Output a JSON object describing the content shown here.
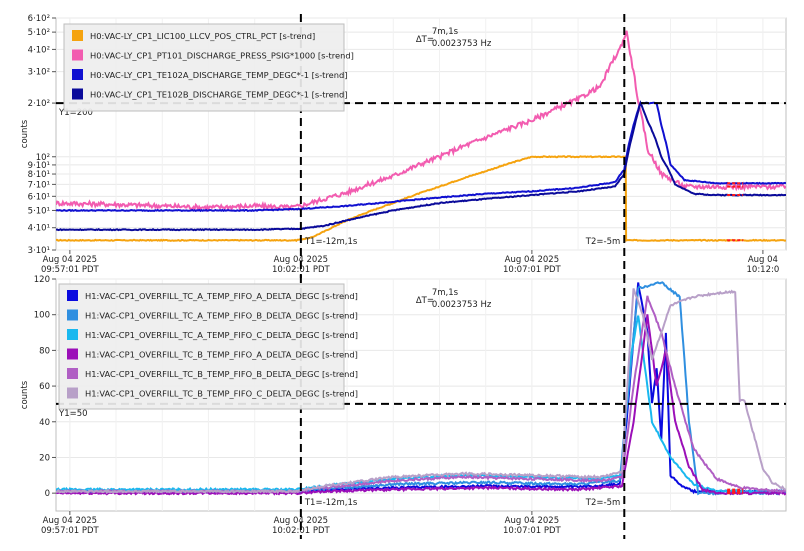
{
  "chart_data": [
    {
      "type": "line",
      "ylabel": "counts",
      "yscale": "log",
      "ylim": [
        30,
        600
      ],
      "ytick_labels": [
        "3·10¹",
        "4·10¹",
        "5·10¹",
        "6·10¹",
        "7·10¹",
        "8·10¹",
        "9·10¹",
        "10²",
        "2·10²",
        "3·10²",
        "4·10²",
        "5·10²",
        "6·10²"
      ],
      "ytick_values": [
        30,
        40,
        50,
        60,
        70,
        80,
        90,
        100,
        200,
        300,
        400,
        500,
        600
      ],
      "x_unit": "minutes relative to 10:02:01",
      "xlim": [
        -5.3,
        10.5
      ],
      "xtick_labels": [
        {
          "date": "Aug 04 2025",
          "time": "09:57:01 PDT",
          "x": -5
        },
        {
          "date": "Aug 04 2025",
          "time": "10:02:01 PDT",
          "x": 0
        },
        {
          "date": "Aug 04 2025",
          "time": "10:07:01 PDT",
          "x": 5
        },
        {
          "date": "Aug 04",
          "time": "10:12:0",
          "x": 10
        }
      ],
      "grid": true,
      "legend_position": "top-left",
      "series": [
        {
          "name": "H0:VAC-LY_CP1_LIC100_LLCV_POS_CTRL_PCT [s-trend]",
          "color": "#f5a30f",
          "points": [
            [
              -5.3,
              34
            ],
            [
              -0.1,
              34
            ],
            [
              0,
              34.5
            ],
            [
              0.2,
              35
            ],
            [
              0.5,
              38
            ],
            [
              1,
              44
            ],
            [
              2,
              55
            ],
            [
              3,
              68
            ],
            [
              4,
              83
            ],
            [
              5,
              100
            ],
            [
              7.03,
              100
            ],
            [
              7.04,
              34
            ],
            [
              10.5,
              34
            ]
          ]
        },
        {
          "name": "H0:VAC-LY_CP1_PT101_DISCHARGE_PRESS_PSIG*1000 [s-trend]",
          "color": "#f25cb0",
          "points": [
            [
              -5.3,
              55
            ],
            [
              -4,
              54
            ],
            [
              -3,
              53
            ],
            [
              -2,
              52
            ],
            [
              -1,
              53
            ],
            [
              -0.2,
              52
            ],
            [
              0,
              53
            ],
            [
              0.5,
              58
            ],
            [
              1,
              63
            ],
            [
              2,
              78
            ],
            [
              3,
              100
            ],
            [
              4,
              128
            ],
            [
              5,
              160
            ],
            [
              6,
              210
            ],
            [
              6.5,
              250
            ],
            [
              6.9,
              400
            ],
            [
              7.05,
              500
            ],
            [
              7.15,
              350
            ],
            [
              7.3,
              200
            ],
            [
              7.5,
              110
            ],
            [
              7.8,
              80
            ],
            [
              8.3,
              68
            ],
            [
              9,
              68
            ],
            [
              10.5,
              68
            ]
          ]
        },
        {
          "name": "H0:VAC-LY_CP1_TE102A_DISCHARGE_TEMP_DEGC*-1 [s-trend]",
          "color": "#1010d0",
          "points": [
            [
              -5.3,
              50
            ],
            [
              -1,
              50
            ],
            [
              0,
              51
            ],
            [
              1,
              53
            ],
            [
              2,
              56
            ],
            [
              3,
              59
            ],
            [
              4,
              62
            ],
            [
              5,
              64
            ],
            [
              6,
              67
            ],
            [
              6.8,
              72
            ],
            [
              7.0,
              85
            ],
            [
              7.2,
              150
            ],
            [
              7.35,
              200
            ],
            [
              7.7,
              200
            ],
            [
              7.8,
              150
            ],
            [
              8,
              90
            ],
            [
              8.3,
              74
            ],
            [
              9,
              71
            ],
            [
              10.5,
              71
            ]
          ]
        },
        {
          "name": "H0:VAC-LY_CP1_TE102B_DISCHARGE_TEMP_DEGC*-1 [s-trend]",
          "color": "#0a0a9a",
          "points": [
            [
              -5.3,
              39
            ],
            [
              -1,
              39
            ],
            [
              0,
              39.5
            ],
            [
              0.5,
              41
            ],
            [
              1,
              44
            ],
            [
              2,
              50
            ],
            [
              3,
              55
            ],
            [
              4,
              58
            ],
            [
              5,
              61
            ],
            [
              6,
              64
            ],
            [
              6.8,
              68
            ],
            [
              7.0,
              80
            ],
            [
              7.2,
              140
            ],
            [
              7.35,
              200
            ],
            [
              7.5,
              160
            ],
            [
              7.8,
              100
            ],
            [
              8.1,
              70
            ],
            [
              8.5,
              62
            ],
            [
              9,
              61
            ],
            [
              10.5,
              61
            ]
          ]
        }
      ],
      "cursors": {
        "y1": {
          "label": "Y1=200",
          "value": 200
        },
        "t1": {
          "label": "T1=-12m,1s",
          "x": 0
        },
        "t2": {
          "label": "T2=-5m",
          "x": 7.0
        }
      },
      "delta": {
        "label": "ΔT=",
        "line1": "7m,1s",
        "line2": "0.0023753 Hz"
      }
    },
    {
      "type": "line",
      "ylabel": "counts",
      "ylim": [
        -10,
        120
      ],
      "yticks": [
        0,
        20,
        40,
        60,
        80,
        100,
        120
      ],
      "x_unit": "minutes relative to 10:02:01",
      "xlim": [
        -5.3,
        10.5
      ],
      "xtick_labels": [
        {
          "date": "Aug 04 2025",
          "time": "09:57:01 PDT",
          "x": -5
        },
        {
          "date": "Aug 04 2025",
          "time": "10:02:01 PDT",
          "x": 0
        },
        {
          "date": "Aug 04 2025",
          "time": "10:07:01 PDT",
          "x": 5
        }
      ],
      "grid": true,
      "legend_position": "top-left",
      "series": [
        {
          "name": "H1:VAC-CP1_OVERFILL_TC_A_TEMP_FIFO_A_DELTA_DEGC [s-trend]",
          "color": "#0a0adf",
          "points": [
            [
              -5.3,
              1
            ],
            [
              -0.1,
              1
            ],
            [
              0.2,
              1.5
            ],
            [
              2,
              3
            ],
            [
              4,
              4
            ],
            [
              6,
              3.5
            ],
            [
              6.9,
              5
            ],
            [
              7.05,
              40
            ],
            [
              7.3,
              118
            ],
            [
              7.5,
              90
            ],
            [
              7.6,
              50
            ],
            [
              7.7,
              70
            ],
            [
              7.8,
              30
            ],
            [
              7.9,
              90
            ],
            [
              8.0,
              10
            ],
            [
              8.2,
              5
            ],
            [
              8.5,
              1
            ],
            [
              10.5,
              1
            ]
          ]
        },
        {
          "name": "H1:VAC-CP1_OVERFILL_TC_A_TEMP_FIFO_B_DELTA_DEGC [s-trend]",
          "color": "#2f8fe0",
          "points": [
            [
              -5.3,
              1
            ],
            [
              -0.1,
              1
            ],
            [
              0.3,
              2
            ],
            [
              2,
              5
            ],
            [
              4,
              6
            ],
            [
              6,
              5
            ],
            [
              6.9,
              7
            ],
            [
              7.1,
              60
            ],
            [
              7.3,
              115
            ],
            [
              7.8,
              118
            ],
            [
              8.2,
              110
            ],
            [
              8.4,
              40
            ],
            [
              8.6,
              0
            ],
            [
              10.5,
              0
            ]
          ]
        },
        {
          "name": "H1:VAC-CP1_OVERFILL_TC_A_TEMP_FIFO_C_DELTA_DEGC [s-trend]",
          "color": "#19b8ef",
          "points": [
            [
              -5.3,
              2
            ],
            [
              -0.1,
              2
            ],
            [
              0.5,
              4
            ],
            [
              2,
              8
            ],
            [
              3.5,
              10
            ],
            [
              5,
              9
            ],
            [
              6.5,
              8
            ],
            [
              6.95,
              10
            ],
            [
              7.1,
              70
            ],
            [
              7.3,
              100
            ],
            [
              7.6,
              40
            ],
            [
              8.0,
              20
            ],
            [
              8.5,
              5
            ],
            [
              9,
              1
            ],
            [
              10.5,
              1
            ]
          ]
        },
        {
          "name": "H1:VAC-CP1_OVERFILL_TC_B_TEMP_FIFO_A_DELTA_DEGC [s-trend]",
          "color": "#9b0fb8",
          "points": [
            [
              -5.3,
              0
            ],
            [
              -0.1,
              0
            ],
            [
              0.5,
              1
            ],
            [
              2,
              2
            ],
            [
              4,
              3
            ],
            [
              6,
              2
            ],
            [
              6.95,
              4
            ],
            [
              7.2,
              40
            ],
            [
              7.5,
              100
            ],
            [
              7.7,
              60
            ],
            [
              7.9,
              80
            ],
            [
              8.1,
              40
            ],
            [
              8.4,
              15
            ],
            [
              8.7,
              2
            ],
            [
              9,
              0
            ],
            [
              10.5,
              0
            ]
          ]
        },
        {
          "name": "H1:VAC-CP1_OVERFILL_TC_B_TEMP_FIFO_B_DELTA_DEGC [s-trend]",
          "color": "#b05fc4",
          "points": [
            [
              -5.3,
              1
            ],
            [
              -0.1,
              1
            ],
            [
              0.5,
              3
            ],
            [
              2,
              7
            ],
            [
              3.5,
              9
            ],
            [
              5,
              8
            ],
            [
              6.5,
              7
            ],
            [
              6.95,
              9
            ],
            [
              7.2,
              60
            ],
            [
              7.5,
              110
            ],
            [
              7.8,
              90
            ],
            [
              8.1,
              60
            ],
            [
              8.5,
              25
            ],
            [
              9,
              8
            ],
            [
              9.5,
              3
            ],
            [
              10.5,
              1
            ]
          ]
        },
        {
          "name": "H1:VAC-CP1_OVERFILL_TC_B_TEMP_FIFO_C_DELTA_DEGC [s-trend]",
          "color": "#b8a0c8",
          "points": [
            [
              -5.3,
              1
            ],
            [
              -0.1,
              1
            ],
            [
              0.5,
              4
            ],
            [
              2,
              9
            ],
            [
              3.5,
              11
            ],
            [
              5,
              10
            ],
            [
              6.5,
              9
            ],
            [
              6.95,
              12
            ],
            [
              7.2,
              115
            ],
            [
              7.4,
              100
            ],
            [
              7.6,
              75
            ],
            [
              8.0,
              105
            ],
            [
              8.5,
              110
            ],
            [
              9,
              112
            ],
            [
              9.4,
              113
            ],
            [
              9.5,
              52
            ],
            [
              9.6,
              52
            ],
            [
              10.0,
              14
            ],
            [
              10.2,
              6
            ],
            [
              10.5,
              2
            ]
          ]
        }
      ],
      "cursors": {
        "y1": {
          "label": "Y1=50",
          "value": 50
        },
        "t1": {
          "label": "T1=-12m,1s",
          "x": 0
        },
        "t2": {
          "label": "T2=-5m",
          "x": 7.0
        }
      },
      "delta": {
        "label": "ΔT=",
        "line1": "7m,1s",
        "line2": "0.0023753 Hz"
      }
    }
  ]
}
